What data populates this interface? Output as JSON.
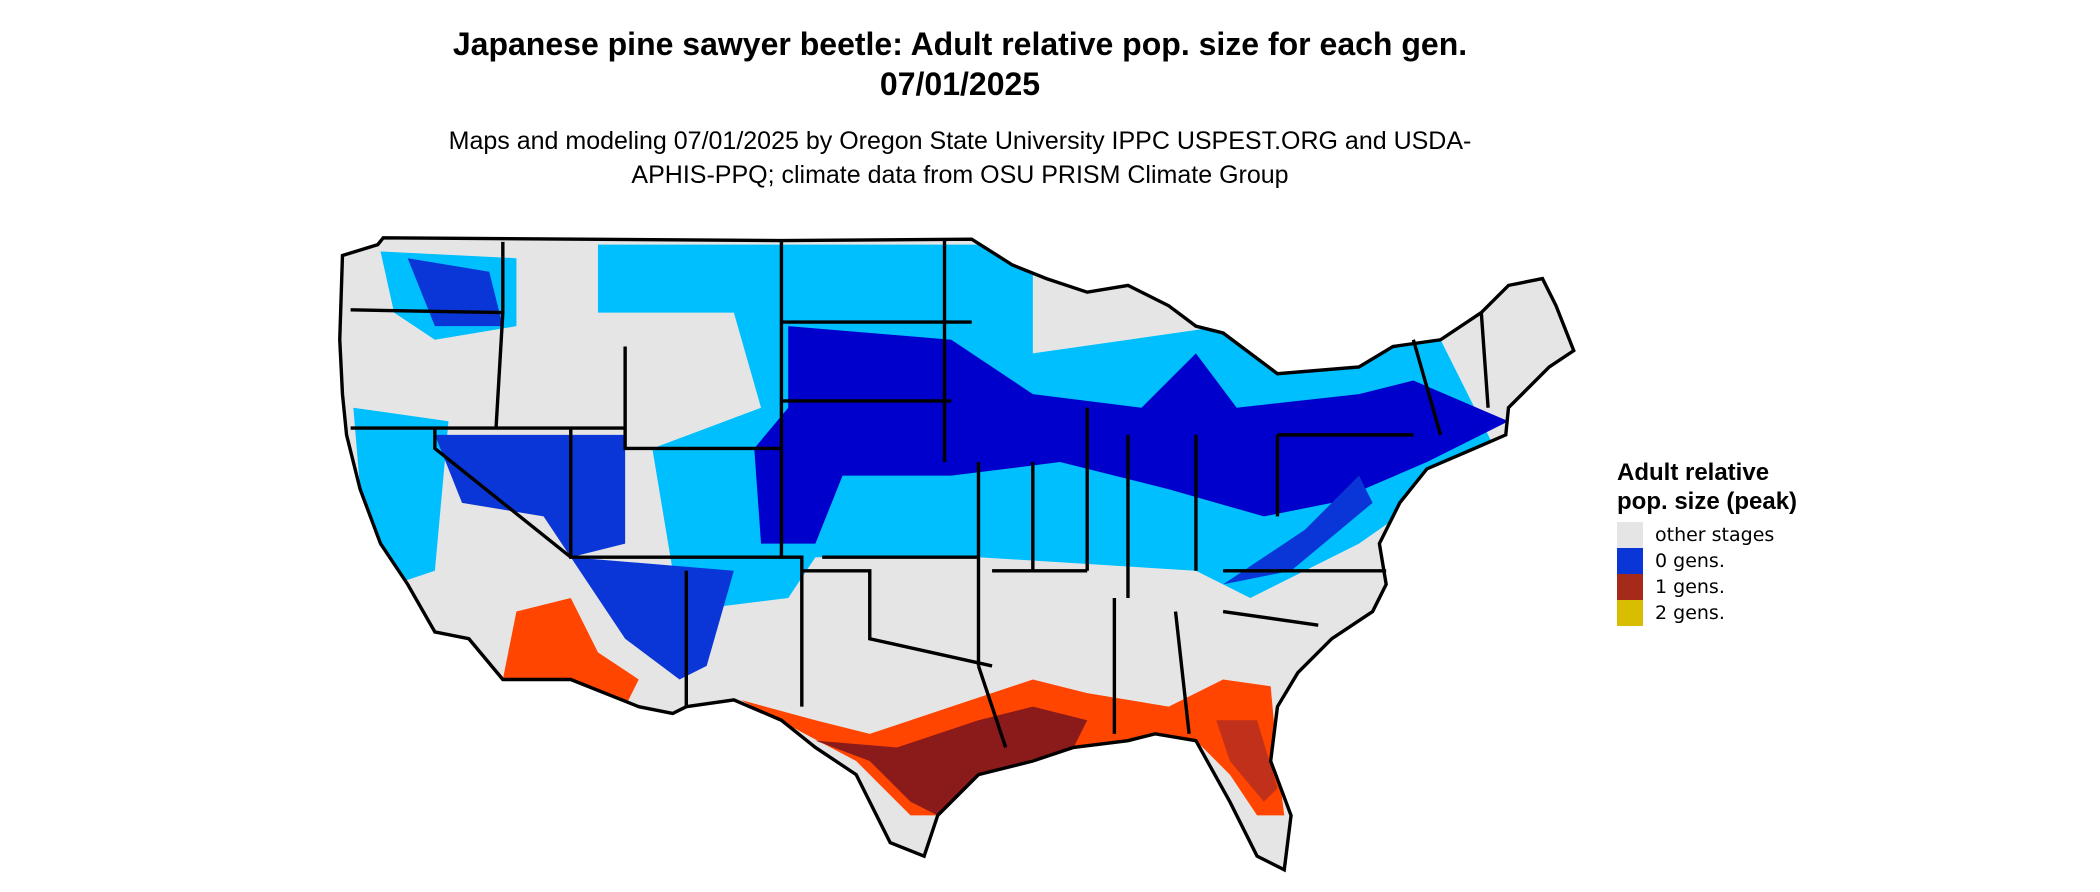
{
  "title": "Japanese pine sawyer beetle: Adult relative pop. size for each gen. 07/01/2025",
  "subtitle": "Maps and modeling 07/01/2025 by Oregon State University IPPC USPEST.ORG and USDA-APHIS-PPQ; climate data from OSU PRISM Climate Group",
  "legend": {
    "title": "Adult relative pop. size (peak)",
    "items": [
      {
        "label": "other stages",
        "color": "#e5e5e5"
      },
      {
        "label": "0 gens.",
        "color": "#0a36d8"
      },
      {
        "label": "1 gens.",
        "color": "#a52a1a"
      },
      {
        "label": "2 gens.",
        "color": "#d8bd00"
      }
    ]
  }
}
